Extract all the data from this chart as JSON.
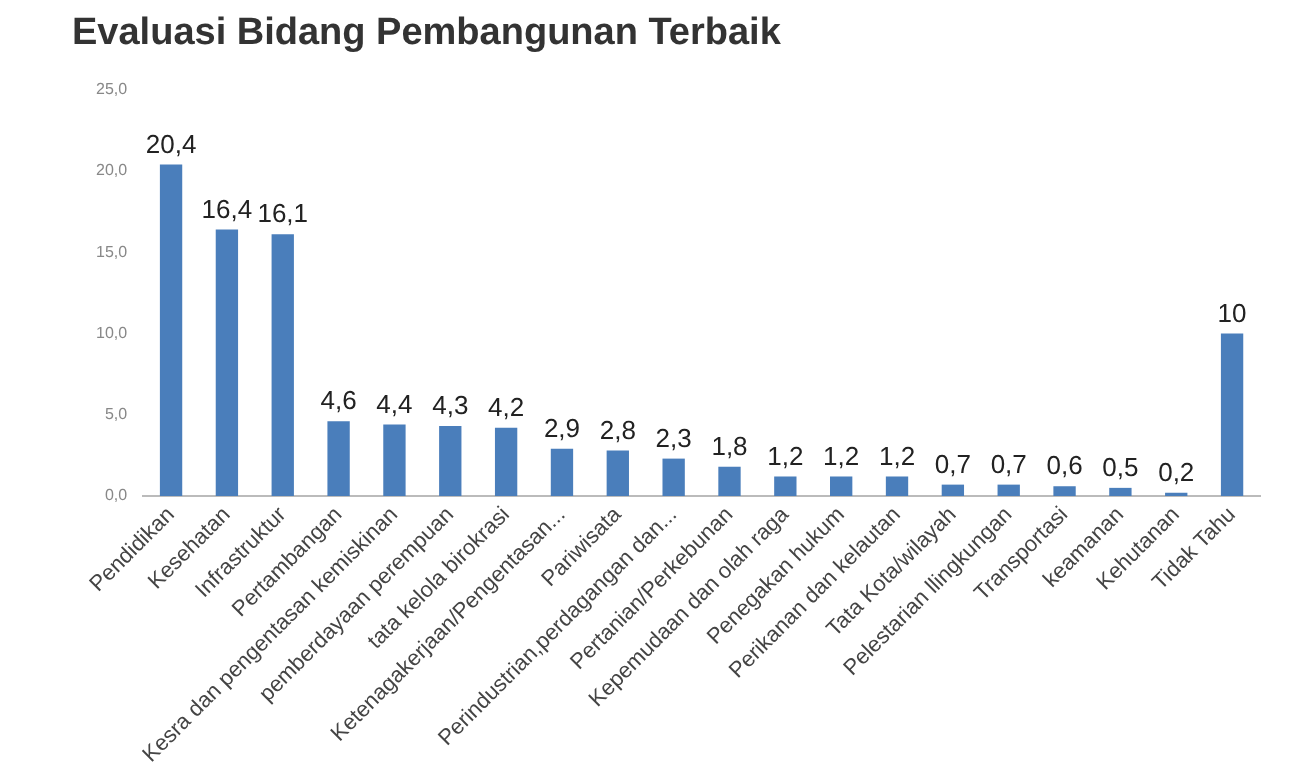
{
  "chart_data": {
    "type": "bar",
    "title": "Evaluasi Bidang Pembangunan Terbaik",
    "categories": [
      "Pendidikan",
      "Kesehatan",
      "Infrastruktur",
      "Pertambangan",
      "Kesra dan pengentasan kemiskinan",
      "pemberdayaan perempuan",
      "tata kelola birokrasi",
      "Ketenagakerjaan/Pengentasan...",
      "Pariwisata",
      "Perindustrian,perdagangan dan...",
      "Pertanian/Perkebunan",
      "Kepemudaan dan olah raga",
      "Penegakan hukum",
      "Perikanan dan kelautan",
      "Tata Kota/wilayah",
      "Pelestarian llingkungan",
      "Transportasi",
      "keamanan",
      "Kehutanan",
      "Tidak Tahu"
    ],
    "values": [
      20.4,
      16.4,
      16.1,
      4.6,
      4.4,
      4.3,
      4.2,
      2.9,
      2.8,
      2.3,
      1.8,
      1.2,
      1.2,
      1.2,
      0.7,
      0.7,
      0.6,
      0.5,
      0.2,
      10
    ],
    "value_labels": [
      "20,4",
      "16,4",
      "16,1",
      "4,6",
      "4,4",
      "4,3",
      "4,2",
      "2,9",
      "2,8",
      "2,3",
      "1,8",
      "1,2",
      "1,2",
      "1,2",
      "0,7",
      "0,7",
      "0,6",
      "0,5",
      "0,2",
      "10"
    ],
    "color": "#4a7ebb",
    "ylim": [
      0,
      25
    ],
    "yticks": [
      {
        "value": 0,
        "label": "0,0"
      },
      {
        "value": 5,
        "label": "5,0"
      },
      {
        "value": 10,
        "label": "10,0"
      },
      {
        "value": 15,
        "label": "15,0"
      },
      {
        "value": 20,
        "label": "20,0"
      },
      {
        "value": 25,
        "label": "25,0"
      }
    ],
    "grid": false,
    "legend": false
  }
}
